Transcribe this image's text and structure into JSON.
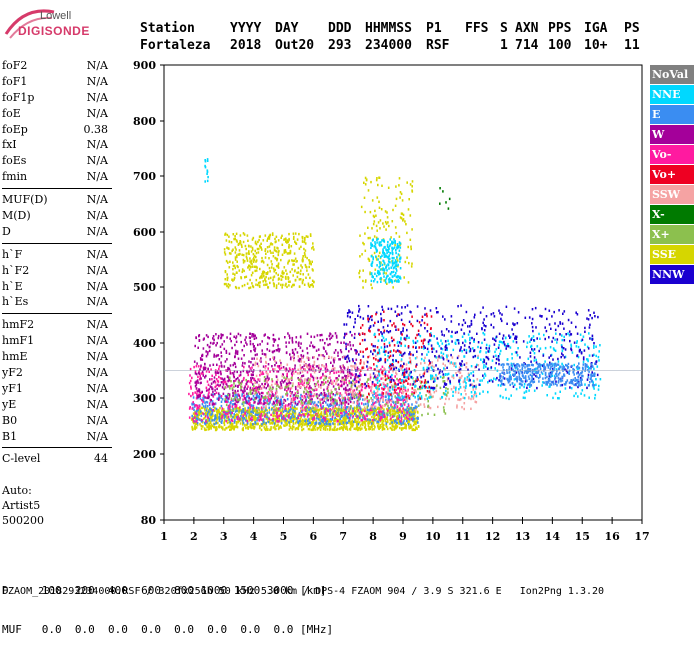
{
  "logo": {
    "line1": "Lowell",
    "line2": "DIGISONDE"
  },
  "header": {
    "labels": [
      "Station",
      "YYYY",
      "DAY",
      "DDD",
      "HHMMSS",
      "P1",
      "FFS",
      "S",
      "AXN",
      "PPS",
      "IGA",
      "PS"
    ],
    "values": [
      "Fortaleza",
      "2018",
      "Out20",
      "293",
      "234000",
      "RSF",
      "",
      "1",
      "714",
      "100",
      "10+",
      "11"
    ]
  },
  "params": {
    "group1": [
      {
        "k": "foF2",
        "v": "N/A"
      },
      {
        "k": "foF1",
        "v": "N/A"
      },
      {
        "k": "foF1p",
        "v": "N/A"
      },
      {
        "k": "foE",
        "v": "N/A"
      },
      {
        "k": "foEp",
        "v": "0.38"
      },
      {
        "k": "fxI",
        "v": "N/A"
      },
      {
        "k": "foEs",
        "v": "N/A"
      },
      {
        "k": "fmin",
        "v": "N/A"
      }
    ],
    "group2": [
      {
        "k": "MUF(D)",
        "v": "N/A"
      },
      {
        "k": "M(D)",
        "v": "N/A"
      },
      {
        "k": "D",
        "v": "N/A"
      }
    ],
    "group3": [
      {
        "k": "h`F",
        "v": "N/A"
      },
      {
        "k": "h`F2",
        "v": "N/A"
      },
      {
        "k": "h`E",
        "v": "N/A"
      },
      {
        "k": "h`Es",
        "v": "N/A"
      }
    ],
    "group4": [
      {
        "k": "hmF2",
        "v": "N/A"
      },
      {
        "k": "hmF1",
        "v": "N/A"
      },
      {
        "k": "hmE",
        "v": "N/A"
      },
      {
        "k": "yF2",
        "v": "N/A"
      },
      {
        "k": "yF1",
        "v": "N/A"
      },
      {
        "k": "yE",
        "v": "N/A"
      },
      {
        "k": "B0",
        "v": "N/A"
      },
      {
        "k": "B1",
        "v": "N/A"
      }
    ],
    "group5": [
      {
        "k": "C-level",
        "v": "44"
      }
    ]
  },
  "auto": {
    "line1": "Auto:",
    "line2": "Artist5",
    "line3": "500200"
  },
  "legend": [
    {
      "label": "NoVal",
      "color": "#808080"
    },
    {
      "label": "NNE",
      "color": "#00d8ff"
    },
    {
      "label": "E",
      "color": "#3a8df2"
    },
    {
      "label": "W",
      "color": "#a4009a"
    },
    {
      "label": "Vo-",
      "color": "#ff1aa0"
    },
    {
      "label": "Vo+",
      "color": "#ee0022"
    },
    {
      "label": "SSW",
      "color": "#f5a3a3"
    },
    {
      "label": "X-",
      "color": "#007a00"
    },
    {
      "label": "X+",
      "color": "#8cc04e"
    },
    {
      "label": "SSE",
      "color": "#d6d600"
    },
    {
      "label": "NNW",
      "color": "#1a00d0"
    }
  ],
  "footer": {
    "line1": "D     100  200  400  600  800 1000 1500 3000 [km]",
    "line2": "MUF   0.0  0.0  0.0  0.0  0.0  0.0  0.0  0.0 [MHz]",
    "line3": "FZAOM_2018293234000.RSF / 320fx256h 50 kHz 5.0 km / DPS-4 FZAOM 904 / 3.9 S 321.6 E   Ion2Png 1.3.20"
  },
  "chart_data": {
    "type": "scatter",
    "title": "",
    "xlabel": "",
    "ylabel": "",
    "xlim": [
      1,
      17
    ],
    "ylim": [
      80,
      900
    ],
    "xticks": [
      1,
      2,
      3,
      4,
      5,
      6,
      7,
      8,
      9,
      10,
      11,
      12,
      13,
      14,
      15,
      16,
      17
    ],
    "yticks": [
      80,
      200,
      300,
      400,
      500,
      600,
      700,
      800,
      900
    ],
    "grid": false,
    "clusters": [
      {
        "name": "SSE",
        "color": "#d6d600",
        "x": [
          1.9,
          9.5
        ],
        "h": [
          245,
          285
        ],
        "density": 1400
      },
      {
        "name": "E",
        "color": "#3a8df2",
        "x": [
          1.9,
          9.5
        ],
        "h": [
          255,
          310
        ],
        "density": 700
      },
      {
        "name": "Vo-",
        "color": "#ff1aa0",
        "x": [
          1.8,
          9.3
        ],
        "h": [
          260,
          360
        ],
        "density": 650
      },
      {
        "name": "W",
        "color": "#a4009a",
        "x": [
          2.0,
          7.5
        ],
        "h": [
          290,
          420
        ],
        "density": 700
      },
      {
        "name": "SSW",
        "color": "#f5a3a3",
        "x": [
          4.0,
          11.5
        ],
        "h": [
          280,
          380
        ],
        "density": 450
      },
      {
        "name": "X+",
        "color": "#8cc04e",
        "x": [
          3.0,
          10.5
        ],
        "h": [
          270,
          340
        ],
        "density": 250
      },
      {
        "name": "NNE",
        "color": "#00d8ff",
        "x": [
          8.0,
          15.6
        ],
        "h": [
          300,
          420
        ],
        "density": 450
      },
      {
        "name": "NNW",
        "color": "#1a00d0",
        "x": [
          7.0,
          15.5
        ],
        "h": [
          320,
          470
        ],
        "density": 550
      },
      {
        "name": "E",
        "color": "#3a8df2",
        "x": [
          12.2,
          15.4
        ],
        "h": [
          325,
          365
        ],
        "density": 350
      },
      {
        "name": "Vo+",
        "color": "#ee0022",
        "x": [
          7.5,
          10.0
        ],
        "h": [
          300,
          460
        ],
        "density": 150
      },
      {
        "name": "SSE",
        "color": "#d6d600",
        "x": [
          3.0,
          6.0
        ],
        "h": [
          500,
          600
        ],
        "density": 450
      },
      {
        "name": "SSE",
        "color": "#d6d600",
        "x": [
          7.5,
          9.3
        ],
        "h": [
          500,
          700
        ],
        "density": 150
      },
      {
        "name": "NNE",
        "color": "#00d8ff",
        "x": [
          7.9,
          8.9
        ],
        "h": [
          510,
          590
        ],
        "density": 220
      },
      {
        "name": "X-",
        "color": "#007a00",
        "x": [
          10.2,
          10.6
        ],
        "h": [
          640,
          690
        ],
        "density": 6
      },
      {
        "name": "NNE",
        "color": "#00d8ff",
        "x": [
          2.35,
          2.45
        ],
        "h": [
          690,
          740
        ],
        "density": 12
      }
    ]
  }
}
